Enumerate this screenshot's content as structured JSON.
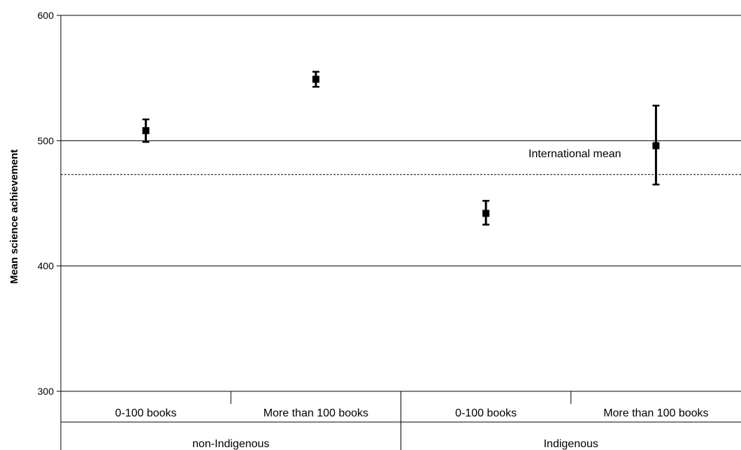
{
  "chart_data": {
    "type": "scatter",
    "ylabel": "Mean science achievement",
    "ylim": [
      300,
      600
    ],
    "yticks": [
      300,
      400,
      500,
      600
    ],
    "grid": true,
    "groups": [
      {
        "label": "non-Indigenous",
        "categories": [
          "0-100 books",
          "More than 100 books"
        ]
      },
      {
        "label": "Indigenous",
        "categories": [
          "0-100 books",
          "More than 100 books"
        ]
      }
    ],
    "points": [
      {
        "group": "non-Indigenous",
        "category": "0-100 books",
        "y": 508,
        "low": 499,
        "high": 517
      },
      {
        "group": "non-Indigenous",
        "category": "More than 100 books",
        "y": 549,
        "low": 543,
        "high": 555
      },
      {
        "group": "Indigenous",
        "category": "0-100 books",
        "y": 442,
        "low": 433,
        "high": 452
      },
      {
        "group": "Indigenous",
        "category": "More than 100 books",
        "y": 496,
        "low": 465,
        "high": 528
      }
    ],
    "reference_line": {
      "label": "International mean",
      "value": 473,
      "style": "dashed"
    }
  }
}
